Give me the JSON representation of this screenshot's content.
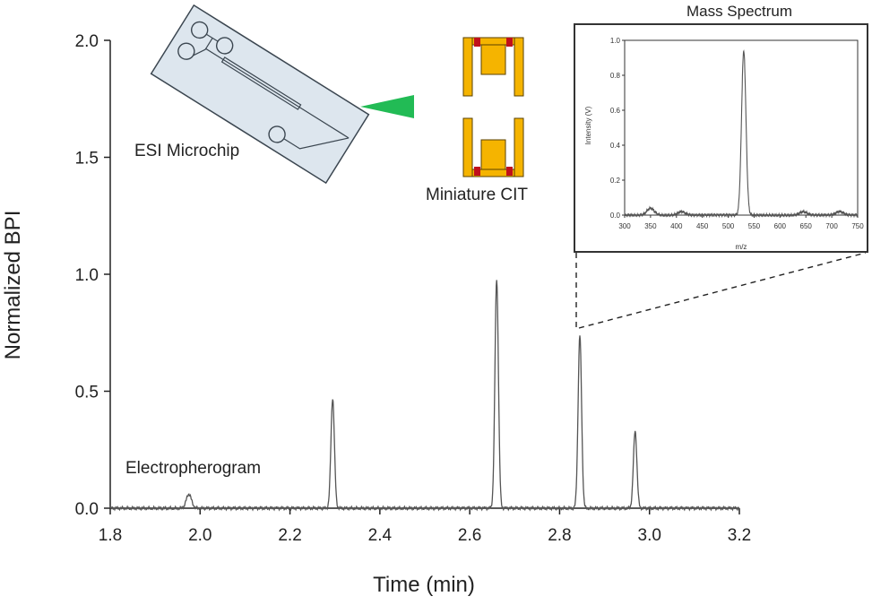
{
  "chart_data": [
    {
      "type": "line",
      "xlabel": "Time (min)",
      "ylabel": "Normalized BPI",
      "xlim": [
        1.8,
        3.2
      ],
      "ylim": [
        0.0,
        2.0
      ],
      "xticks": [
        "1.8",
        "2.0",
        "2.2",
        "2.4",
        "2.6",
        "2.8",
        "3.0",
        "3.2"
      ],
      "yticks": [
        "0.0",
        "0.5",
        "1.0",
        "1.5",
        "2.0"
      ],
      "grid": false,
      "series": [
        {
          "peaks": [
            {
              "x": 1.975,
              "y": 0.06
            },
            {
              "x": 2.295,
              "y": 0.47
            },
            {
              "x": 2.66,
              "y": 0.98
            },
            {
              "x": 2.845,
              "y": 0.74
            },
            {
              "x": 2.968,
              "y": 0.33
            }
          ],
          "baseline": 0.0
        }
      ],
      "annotations": {
        "chip": "ESI Microchip",
        "trap": "Miniature CIT",
        "trace": "Electropherogram"
      }
    },
    {
      "type": "line",
      "title": "Mass Spectrum",
      "xlabel": "m/z",
      "ylabel": "Intensity (V)",
      "xlim": [
        300,
        750
      ],
      "ylim": [
        0.0,
        1.0
      ],
      "xticks": [
        "300",
        "350",
        "400",
        "450",
        "500",
        "550",
        "600",
        "650",
        "700",
        "750"
      ],
      "yticks": [
        "0.0",
        "0.2",
        "0.4",
        "0.6",
        "0.8",
        "1.0"
      ],
      "series": [
        {
          "peaks": [
            {
              "x": 350,
              "y": 0.04
            },
            {
              "x": 410,
              "y": 0.02
            },
            {
              "x": 530,
              "y": 0.94
            },
            {
              "x": 645,
              "y": 0.02
            },
            {
              "x": 715,
              "y": 0.02
            }
          ],
          "baseline": 0.0
        }
      ]
    }
  ],
  "colors": {
    "trace": "#555555",
    "axis": "#222222",
    "chip_fill": "#dde6ee",
    "chip_stroke": "#3b4650",
    "spray": "#22bb55",
    "electrode": "#f5b400",
    "electrode_accent": "#c0101c"
  },
  "icons": [
    "microchip-diagram",
    "spray-cone",
    "ion-trap-electrodes"
  ]
}
